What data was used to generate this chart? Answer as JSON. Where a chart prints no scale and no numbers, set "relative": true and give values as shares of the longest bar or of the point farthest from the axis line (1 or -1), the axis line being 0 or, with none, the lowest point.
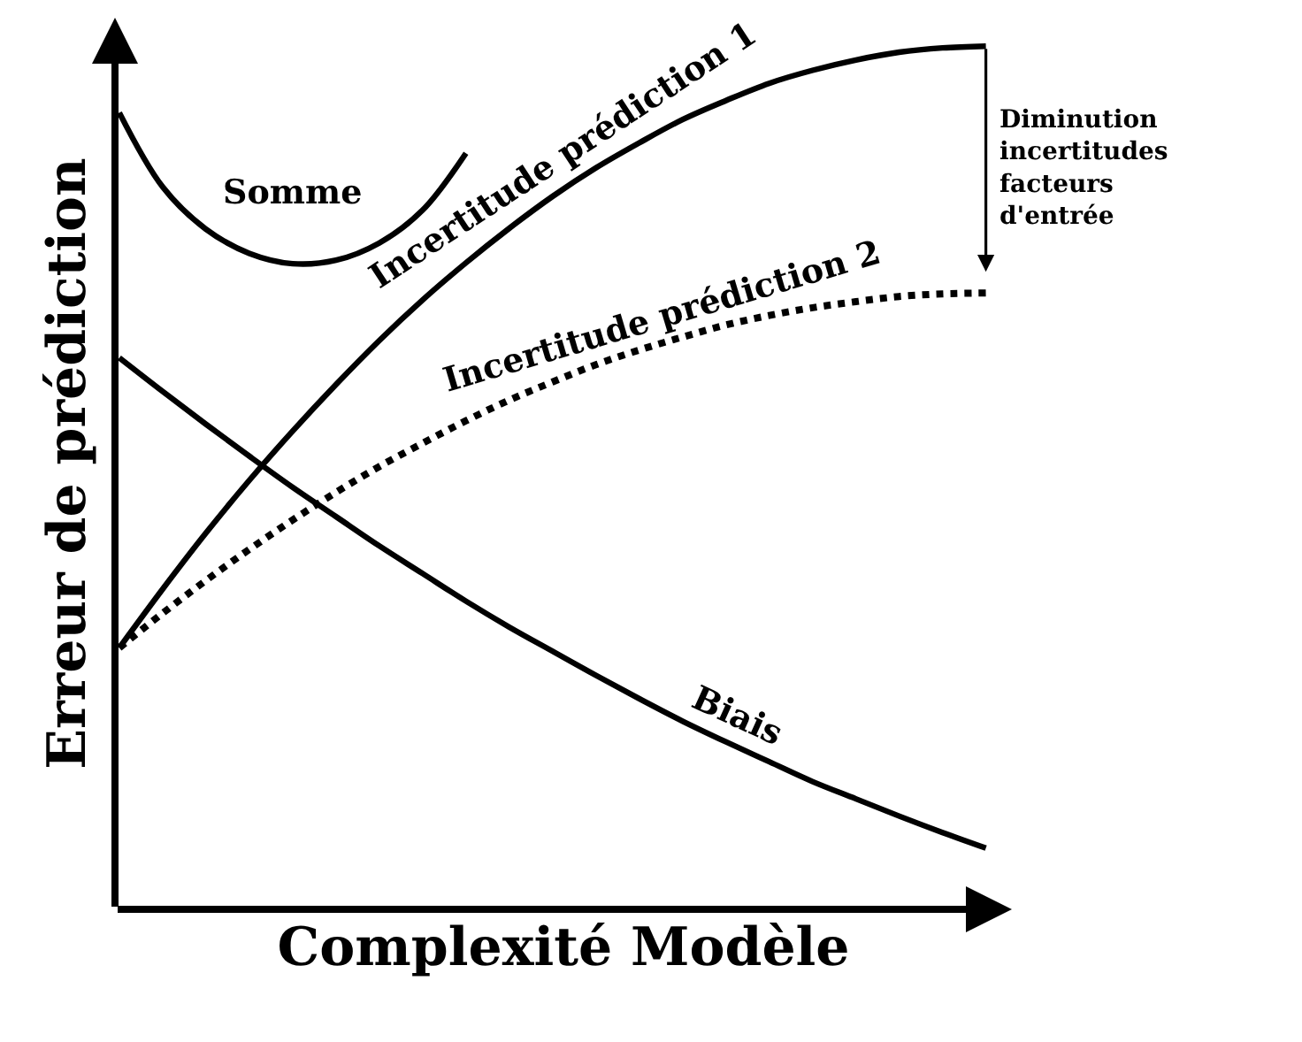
{
  "chart_data": {
    "type": "line",
    "relative": true,
    "xlabel": "Complexité Modèle",
    "ylabel": "Erreur de prédiction",
    "categories": [
      null,
      null,
      null,
      null,
      null,
      null,
      null,
      null,
      null,
      null,
      null,
      null,
      null,
      null,
      null,
      null,
      null,
      null,
      null,
      null,
      null
    ],
    "series": [
      {
        "name": "Incertitude prédiction 1",
        "color": "#000000",
        "line_style": "solid",
        "values": [
          0.303,
          0.371,
          0.436,
          0.497,
          0.554,
          0.608,
          0.659,
          0.706,
          0.749,
          0.789,
          0.826,
          0.859,
          0.888,
          0.915,
          0.937,
          0.957,
          0.972,
          0.984,
          0.993,
          0.998,
          1.0
        ]
      },
      {
        "name": "Incertitude prédiction 2",
        "color": "#000000",
        "line_style": "dotted",
        "values": [
          0.303,
          0.343,
          0.381,
          0.417,
          0.451,
          0.483,
          0.513,
          0.54,
          0.566,
          0.59,
          0.611,
          0.631,
          0.648,
          0.663,
          0.677,
          0.688,
          0.697,
          0.704,
          0.71,
          0.713,
          0.714
        ]
      },
      {
        "name": "Biais",
        "color": "#000000",
        "line_style": "solid",
        "values": [
          0.639,
          0.6,
          0.562,
          0.525,
          0.489,
          0.455,
          0.421,
          0.389,
          0.357,
          0.327,
          0.299,
          0.271,
          0.244,
          0.218,
          0.194,
          0.171,
          0.148,
          0.128,
          0.108,
          0.089,
          0.071
        ]
      },
      {
        "name": "Somme",
        "color": "#000000",
        "line_style": "solid",
        "values": [
          0.923,
          0.837,
          0.788,
          0.76,
          0.748,
          0.752,
          0.772,
          0.81,
          0.876,
          null,
          null,
          null,
          null,
          null,
          null,
          null,
          null,
          null,
          null,
          null,
          null
        ]
      }
    ],
    "annotations": [
      "Diminution\nincertitudes\nfacteurs\nd'entrée"
    ]
  }
}
